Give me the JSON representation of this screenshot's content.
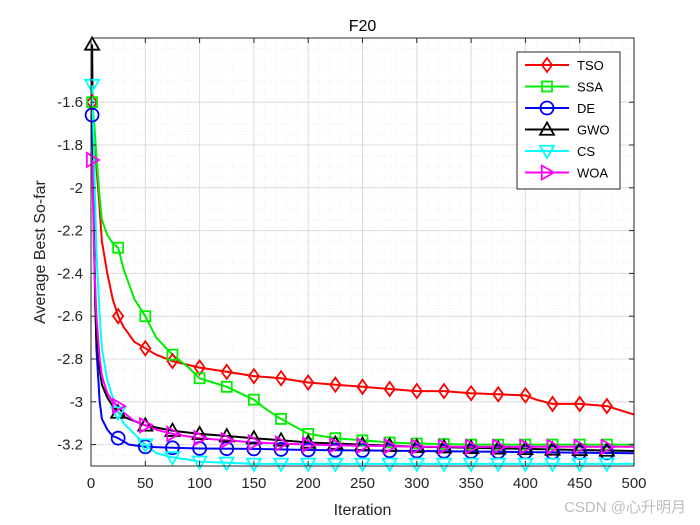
{
  "chart_data": {
    "type": "line",
    "title": "F20",
    "xlabel": "Iteration",
    "ylabel": "Average Best So-far",
    "xlim": [
      0,
      500
    ],
    "ylim": [
      -3.3,
      -1.3
    ],
    "xticks": [
      0,
      50,
      100,
      150,
      200,
      250,
      300,
      350,
      400,
      450,
      500
    ],
    "yticks": [
      -3.2,
      -3,
      -2.8,
      -2.6,
      -2.4,
      -2.2,
      -2,
      -1.8,
      -1.6
    ],
    "ytick_labels": [
      "-3.2",
      "-3",
      "-2.8",
      "-2.6",
      "-2.4",
      "-2.2",
      "-2",
      "-1.8",
      "-1.6"
    ],
    "grid": true,
    "legend_position": "top-right",
    "series": [
      {
        "name": "TSO",
        "color": "#ff0000",
        "marker": "diamond",
        "x": [
          1,
          3,
          5,
          8,
          10,
          15,
          20,
          25,
          30,
          40,
          50,
          60,
          75,
          100,
          125,
          150,
          175,
          200,
          225,
          250,
          275,
          300,
          325,
          350,
          375,
          400,
          410,
          425,
          450,
          475,
          500
        ],
        "y": [
          -1.6,
          -1.75,
          -1.9,
          -2.1,
          -2.25,
          -2.4,
          -2.52,
          -2.6,
          -2.65,
          -2.72,
          -2.75,
          -2.78,
          -2.81,
          -2.84,
          -2.86,
          -2.88,
          -2.89,
          -2.91,
          -2.92,
          -2.93,
          -2.94,
          -2.95,
          -2.95,
          -2.96,
          -2.965,
          -2.97,
          -2.99,
          -3.01,
          -3.01,
          -3.02,
          -3.06
        ],
        "marker_x": [
          1,
          25,
          50,
          75,
          100,
          125,
          150,
          175,
          200,
          225,
          250,
          275,
          300,
          325,
          350,
          375,
          400,
          425,
          450,
          475
        ]
      },
      {
        "name": "SSA",
        "color": "#00ee00",
        "marker": "square",
        "x": [
          1,
          3,
          5,
          8,
          10,
          15,
          20,
          25,
          30,
          40,
          50,
          60,
          75,
          90,
          100,
          125,
          150,
          160,
          175,
          200,
          225,
          250,
          275,
          300,
          350,
          400,
          450,
          500
        ],
        "y": [
          -1.6,
          -1.7,
          -1.85,
          -2.05,
          -2.15,
          -2.22,
          -2.26,
          -2.28,
          -2.38,
          -2.52,
          -2.6,
          -2.7,
          -2.78,
          -2.84,
          -2.89,
          -2.93,
          -2.99,
          -3.03,
          -3.08,
          -3.15,
          -3.17,
          -3.18,
          -3.19,
          -3.195,
          -3.2,
          -3.2,
          -3.2,
          -3.2
        ],
        "marker_x": [
          1,
          25,
          50,
          75,
          100,
          125,
          150,
          175,
          200,
          225,
          250,
          275,
          300,
          325,
          350,
          375,
          400,
          425,
          450,
          475
        ]
      },
      {
        "name": "DE",
        "color": "#0000ff",
        "marker": "circle",
        "x": [
          1,
          3,
          5,
          8,
          10,
          15,
          20,
          25,
          35,
          50,
          75,
          100,
          150,
          200,
          300,
          400,
          500
        ],
        "y": [
          -1.66,
          -2.3,
          -2.75,
          -3.0,
          -3.08,
          -3.13,
          -3.16,
          -3.17,
          -3.2,
          -3.21,
          -3.215,
          -3.218,
          -3.22,
          -3.225,
          -3.23,
          -3.235,
          -3.24
        ],
        "marker_x": [
          1,
          25,
          50,
          75,
          100,
          125,
          150,
          175,
          200,
          225,
          250,
          275,
          300,
          325,
          350,
          375,
          400,
          425,
          450,
          475
        ]
      },
      {
        "name": "GWO",
        "color": "#000000",
        "marker": "triangle-up",
        "x": [
          1,
          2,
          3,
          4,
          5,
          8,
          10,
          15,
          20,
          25,
          30,
          40,
          50,
          60,
          75,
          100,
          125,
          150,
          175,
          200,
          250,
          300,
          350,
          400,
          450,
          500
        ],
        "y": [
          -1.33,
          -1.9,
          -2.3,
          -2.55,
          -2.7,
          -2.85,
          -2.92,
          -2.98,
          -3.02,
          -3.05,
          -3.07,
          -3.09,
          -3.11,
          -3.12,
          -3.135,
          -3.15,
          -3.16,
          -3.17,
          -3.18,
          -3.19,
          -3.2,
          -3.21,
          -3.215,
          -3.22,
          -3.225,
          -3.23
        ],
        "marker_x": [
          1,
          25,
          50,
          75,
          100,
          125,
          150,
          175,
          200,
          225,
          250,
          275,
          300,
          325,
          350,
          375,
          400,
          425,
          450,
          475
        ]
      },
      {
        "name": "CS",
        "color": "#00ffff",
        "marker": "triangle-down",
        "x": [
          1,
          3,
          5,
          8,
          10,
          15,
          20,
          25,
          30,
          40,
          50,
          60,
          75,
          90,
          100,
          125,
          150,
          200,
          300,
          400,
          500
        ],
        "y": [
          -1.52,
          -1.9,
          -2.3,
          -2.6,
          -2.75,
          -2.9,
          -2.98,
          -3.05,
          -3.1,
          -3.15,
          -3.2,
          -3.24,
          -3.26,
          -3.27,
          -3.28,
          -3.285,
          -3.29,
          -3.29,
          -3.29,
          -3.29,
          -3.29
        ],
        "marker_x": [
          1,
          25,
          50,
          75,
          100,
          125,
          150,
          175,
          200,
          225,
          250,
          275,
          300,
          325,
          350,
          375,
          400,
          425,
          450,
          475
        ]
      },
      {
        "name": "WOA",
        "color": "#ff00ff",
        "marker": "triangle-right",
        "x": [
          1,
          2,
          3,
          5,
          8,
          10,
          15,
          20,
          25,
          30,
          40,
          50,
          60,
          75,
          100,
          125,
          150,
          200,
          250,
          300,
          400,
          500
        ],
        "y": [
          -1.87,
          -2.1,
          -2.35,
          -2.6,
          -2.8,
          -2.88,
          -2.96,
          -3.0,
          -3.02,
          -3.05,
          -3.09,
          -3.11,
          -3.13,
          -3.15,
          -3.17,
          -3.18,
          -3.19,
          -3.2,
          -3.205,
          -3.21,
          -3.21,
          -3.21
        ],
        "marker_x": [
          1,
          25,
          50,
          75,
          100,
          125,
          150,
          175,
          200,
          225,
          250,
          275,
          300,
          325,
          350,
          375,
          400,
          425,
          450,
          475
        ]
      }
    ]
  },
  "watermark": "CSDN @心升明月"
}
